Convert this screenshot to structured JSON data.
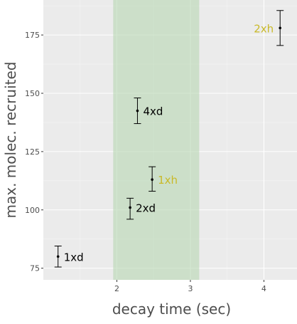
{
  "chart_data": {
    "type": "scatter",
    "title": "",
    "xlabel": "decay time (sec)",
    "ylabel": "max. molec. recruited",
    "xlim": [
      1.0,
      4.45
    ],
    "ylim": [
      70,
      190
    ],
    "x_ticks": [
      2,
      3,
      4
    ],
    "y_ticks": [
      75,
      100,
      125,
      150,
      175
    ],
    "grid": true,
    "highlight_band": {
      "x_from": 1.95,
      "x_to": 3.12,
      "color": "#b7d7b2"
    },
    "points": [
      {
        "label": "1xd",
        "x": 1.2,
        "y": 80,
        "ymin": 75.5,
        "ymax": 84.5,
        "label_color": "#000000",
        "label_side": "right"
      },
      {
        "label": "2xd",
        "x": 2.18,
        "y": 101,
        "ymin": 96,
        "ymax": 105,
        "label_color": "#000000",
        "label_side": "right"
      },
      {
        "label": "1xh",
        "x": 2.48,
        "y": 113,
        "ymin": 108,
        "ymax": 118.5,
        "label_color": "#c9b928",
        "label_side": "right"
      },
      {
        "label": "4xd",
        "x": 2.28,
        "y": 142.5,
        "ymin": 137,
        "ymax": 148,
        "label_color": "#000000",
        "label_side": "right"
      },
      {
        "label": "2xh",
        "x": 4.22,
        "y": 178,
        "ymin": 170.5,
        "ymax": 185.5,
        "label_color": "#c9b928",
        "label_side": "left"
      }
    ]
  }
}
